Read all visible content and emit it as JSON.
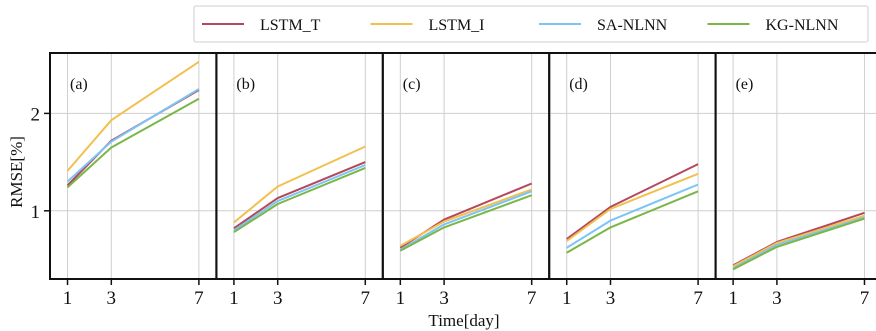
{
  "chart_data": {
    "type": "line",
    "ylabel": "RMSE[%]",
    "xlabel": "Time[day]",
    "x": [
      1,
      3,
      7
    ],
    "xticks": [
      "1",
      "3",
      "7"
    ],
    "xlim": [
      0.2,
      7.8
    ],
    "ylim": [
      0.3,
      2.62
    ],
    "yticks": [
      1,
      2
    ],
    "ytick_labels": [
      "1",
      "2"
    ],
    "grid": true,
    "legend_position": "top-right",
    "series_styles": [
      {
        "name": "LSTM_T",
        "color": "#b5475a"
      },
      {
        "name": "LSTM_I",
        "color": "#f2c04e"
      },
      {
        "name": "SA-NLNN",
        "color": "#7cc4f4"
      },
      {
        "name": "KG-NLNN",
        "color": "#7ab648"
      }
    ],
    "panels": [
      {
        "label": "(a)",
        "series": [
          {
            "name": "LSTM_T",
            "values": [
              1.26,
              1.72,
              2.24
            ]
          },
          {
            "name": "LSTM_I",
            "values": [
              1.41,
              1.93,
              2.53
            ]
          },
          {
            "name": "SA-NLNN",
            "values": [
              1.3,
              1.71,
              2.25
            ]
          },
          {
            "name": "KG-NLNN",
            "values": [
              1.24,
              1.65,
              2.15
            ]
          }
        ]
      },
      {
        "label": "(b)",
        "series": [
          {
            "name": "LSTM_T",
            "values": [
              0.82,
              1.13,
              1.5
            ]
          },
          {
            "name": "LSTM_I",
            "values": [
              0.88,
              1.25,
              1.66
            ]
          },
          {
            "name": "SA-NLNN",
            "values": [
              0.8,
              1.1,
              1.47
            ]
          },
          {
            "name": "KG-NLNN",
            "values": [
              0.78,
              1.07,
              1.44
            ]
          }
        ]
      },
      {
        "label": "(c)",
        "series": [
          {
            "name": "LSTM_T",
            "values": [
              0.62,
              0.91,
              1.28
            ]
          },
          {
            "name": "LSTM_I",
            "values": [
              0.64,
              0.89,
              1.22
            ]
          },
          {
            "name": "SA-NLNN",
            "values": [
              0.6,
              0.86,
              1.2
            ]
          },
          {
            "name": "KG-NLNN",
            "values": [
              0.59,
              0.83,
              1.16
            ]
          }
        ]
      },
      {
        "label": "(d)",
        "series": [
          {
            "name": "LSTM_T",
            "values": [
              0.71,
              1.04,
              1.48
            ]
          },
          {
            "name": "LSTM_I",
            "values": [
              0.69,
              1.02,
              1.38
            ]
          },
          {
            "name": "SA-NLNN",
            "values": [
              0.62,
              0.9,
              1.27
            ]
          },
          {
            "name": "KG-NLNN",
            "values": [
              0.57,
              0.83,
              1.2
            ]
          }
        ]
      },
      {
        "label": "(e)",
        "series": [
          {
            "name": "LSTM_T",
            "values": [
              0.44,
              0.68,
              0.98
            ]
          },
          {
            "name": "LSTM_I",
            "values": [
              0.43,
              0.67,
              0.95
            ]
          },
          {
            "name": "SA-NLNN",
            "values": [
              0.41,
              0.65,
              0.93
            ]
          },
          {
            "name": "KG-NLNN",
            "values": [
              0.4,
              0.63,
              0.92
            ]
          }
        ]
      }
    ]
  }
}
